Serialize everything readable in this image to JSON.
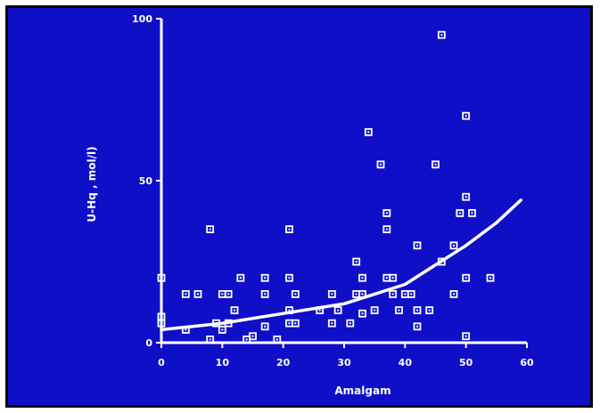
{
  "chart_data": {
    "type": "scatter",
    "title": "",
    "xlabel": "Amalgam",
    "ylabel": "U-Hq , mol/l)",
    "xlim": [
      0,
      60
    ],
    "ylim": [
      0,
      100
    ],
    "x_ticks": [
      "0",
      "10",
      "20",
      "30",
      "40",
      "50",
      "60"
    ],
    "y_ticks": [
      "0",
      "50",
      "100"
    ],
    "grid": false,
    "legend": "none",
    "colors": {
      "background": "#0f0fc8",
      "foreground": "#ffffff"
    },
    "series": [
      {
        "type": "scatter",
        "points": [
          [
            0,
            20
          ],
          [
            0,
            8
          ],
          [
            0,
            6
          ],
          [
            4,
            15
          ],
          [
            4,
            4
          ],
          [
            6,
            15
          ],
          [
            8,
            35
          ],
          [
            8,
            1
          ],
          [
            9,
            6
          ],
          [
            10,
            15
          ],
          [
            10,
            4
          ],
          [
            11,
            15
          ],
          [
            11,
            6
          ],
          [
            12,
            10
          ],
          [
            13,
            20
          ],
          [
            14,
            1
          ],
          [
            15,
            2
          ],
          [
            17,
            20
          ],
          [
            17,
            15
          ],
          [
            17,
            5
          ],
          [
            19,
            1
          ],
          [
            21,
            35
          ],
          [
            21,
            20
          ],
          [
            21,
            10
          ],
          [
            21,
            6
          ],
          [
            22,
            15
          ],
          [
            22,
            6
          ],
          [
            26,
            10
          ],
          [
            28,
            15
          ],
          [
            28,
            6
          ],
          [
            29,
            10
          ],
          [
            31,
            6
          ],
          [
            32,
            25
          ],
          [
            32,
            15
          ],
          [
            33,
            20
          ],
          [
            33,
            15
          ],
          [
            33,
            9
          ],
          [
            34,
            65
          ],
          [
            35,
            10
          ],
          [
            36,
            55
          ],
          [
            37,
            40
          ],
          [
            37,
            35
          ],
          [
            37,
            20
          ],
          [
            38,
            20
          ],
          [
            38,
            15
          ],
          [
            39,
            10
          ],
          [
            40,
            15
          ],
          [
            41,
            15
          ],
          [
            42,
            30
          ],
          [
            42,
            10
          ],
          [
            42,
            5
          ],
          [
            44,
            10
          ],
          [
            45,
            55
          ],
          [
            46,
            95
          ],
          [
            46,
            25
          ],
          [
            48,
            30
          ],
          [
            48,
            15
          ],
          [
            49,
            40
          ],
          [
            50,
            70
          ],
          [
            50,
            45
          ],
          [
            50,
            20
          ],
          [
            50,
            2
          ],
          [
            51,
            40
          ],
          [
            54,
            20
          ]
        ]
      },
      {
        "type": "line",
        "name": "",
        "x": [
          0,
          10,
          20,
          30,
          35,
          40,
          45,
          50,
          55,
          59
        ],
        "y": [
          4,
          6,
          9,
          12,
          15,
          18,
          24,
          30,
          37,
          44
        ]
      }
    ]
  }
}
